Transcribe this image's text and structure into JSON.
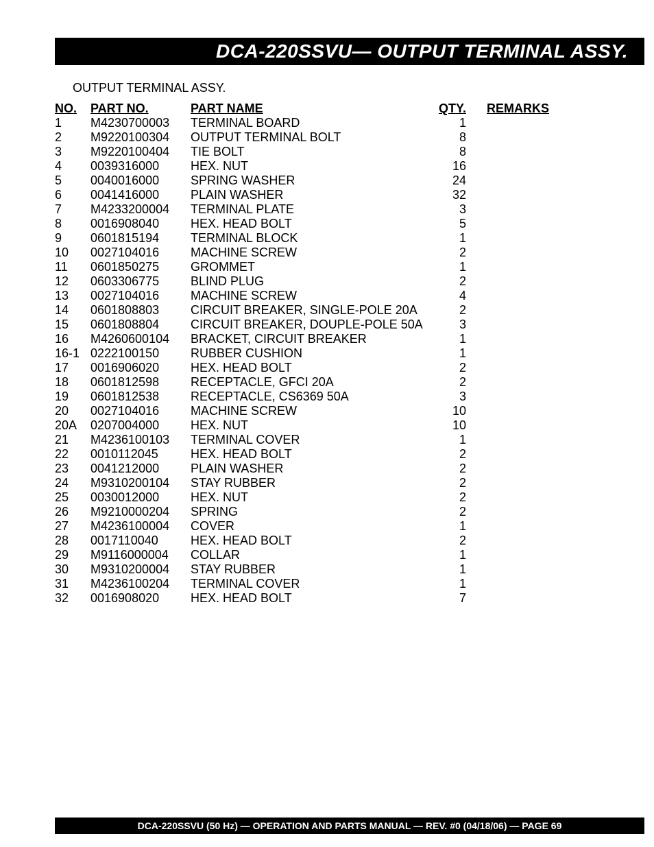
{
  "header": {
    "title": "DCA-220SSVU— OUTPUT TERMINAL ASSY."
  },
  "section_title": "OUTPUT TERMINAL ASSY.",
  "columns": {
    "no": "NO.",
    "part_no": "PART NO.",
    "part_name": "PART NAME",
    "qty": "QTY.",
    "remarks": "REMARKS"
  },
  "rows": [
    {
      "no": "1",
      "part_no": "M4230700003",
      "part_name": "TERMINAL BOARD",
      "qty": "1",
      "remarks": ""
    },
    {
      "no": "2",
      "part_no": "M9220100304",
      "part_name": "OUTPUT TERMINAL BOLT",
      "qty": "8",
      "remarks": ""
    },
    {
      "no": "3",
      "part_no": "M9220100404",
      "part_name": "TIE BOLT",
      "qty": "8",
      "remarks": ""
    },
    {
      "no": "4",
      "part_no": "0039316000",
      "part_name": "HEX. NUT",
      "qty": "16",
      "remarks": ""
    },
    {
      "no": "5",
      "part_no": "0040016000",
      "part_name": "SPRING WASHER",
      "qty": "24",
      "remarks": ""
    },
    {
      "no": "6",
      "part_no": "0041416000",
      "part_name": "PLAIN WASHER",
      "qty": "32",
      "remarks": ""
    },
    {
      "no": "7",
      "part_no": "M4233200004",
      "part_name": "TERMINAL PLATE",
      "qty": "3",
      "remarks": ""
    },
    {
      "no": "8",
      "part_no": "0016908040",
      "part_name": "HEX. HEAD BOLT",
      "qty": "5",
      "remarks": ""
    },
    {
      "no": "9",
      "part_no": "0601815194",
      "part_name": "TERMINAL BLOCK",
      "qty": "1",
      "remarks": ""
    },
    {
      "no": "10",
      "part_no": "0027104016",
      "part_name": "MACHINE SCREW",
      "qty": "2",
      "remarks": ""
    },
    {
      "no": "11",
      "part_no": "0601850275",
      "part_name": "GROMMET",
      "qty": "1",
      "remarks": ""
    },
    {
      "no": "12",
      "part_no": "0603306775",
      "part_name": "BLIND PLUG",
      "qty": "2",
      "remarks": ""
    },
    {
      "no": "13",
      "part_no": "0027104016",
      "part_name": "MACHINE SCREW",
      "qty": "4",
      "remarks": ""
    },
    {
      "no": "14",
      "part_no": "0601808803",
      "part_name": "CIRCUIT BREAKER, SINGLE-POLE 20A",
      "qty": "2",
      "remarks": ""
    },
    {
      "no": "15",
      "part_no": "0601808804",
      "part_name": "CIRCUIT BREAKER, DOUPLE-POLE 50A",
      "qty": "3",
      "remarks": ""
    },
    {
      "no": "16",
      "part_no": "M4260600104",
      "part_name": "BRACKET, CIRCUIT BREAKER",
      "qty": "1",
      "remarks": ""
    },
    {
      "no": "16-1",
      "part_no": "0222100150",
      "part_name": "RUBBER CUSHION",
      "qty": "1",
      "remarks": ""
    },
    {
      "no": "17",
      "part_no": "0016906020",
      "part_name": "HEX. HEAD BOLT",
      "qty": "2",
      "remarks": ""
    },
    {
      "no": "18",
      "part_no": "0601812598",
      "part_name": "RECEPTACLE, GFCI 20A",
      "qty": "2",
      "remarks": ""
    },
    {
      "no": "19",
      "part_no": "0601812538",
      "part_name": "RECEPTACLE, CS6369 50A",
      "qty": "3",
      "remarks": ""
    },
    {
      "no": "20",
      "part_no": "0027104016",
      "part_name": "MACHINE SCREW",
      "qty": "10",
      "remarks": ""
    },
    {
      "no": "20A",
      "part_no": "0207004000",
      "part_name": "HEX. NUT",
      "qty": "10",
      "remarks": ""
    },
    {
      "no": "21",
      "part_no": "M4236100103",
      "part_name": "TERMINAL COVER",
      "qty": "1",
      "remarks": ""
    },
    {
      "no": "22",
      "part_no": "0010112045",
      "part_name": "HEX. HEAD BOLT",
      "qty": "2",
      "remarks": ""
    },
    {
      "no": "23",
      "part_no": "0041212000",
      "part_name": "PLAIN WASHER",
      "qty": "2",
      "remarks": ""
    },
    {
      "no": "24",
      "part_no": "M9310200104",
      "part_name": "STAY RUBBER",
      "qty": "2",
      "remarks": ""
    },
    {
      "no": "25",
      "part_no": "0030012000",
      "part_name": "HEX. NUT",
      "qty": "2",
      "remarks": ""
    },
    {
      "no": "26",
      "part_no": "M9210000204",
      "part_name": "SPRING",
      "qty": "2",
      "remarks": ""
    },
    {
      "no": "27",
      "part_no": "M4236100004",
      "part_name": "COVER",
      "qty": "1",
      "remarks": ""
    },
    {
      "no": "28",
      "part_no": "0017110040",
      "part_name": "HEX. HEAD BOLT",
      "qty": "2",
      "remarks": ""
    },
    {
      "no": "29",
      "part_no": "M9116000004",
      "part_name": "COLLAR",
      "qty": "1",
      "remarks": ""
    },
    {
      "no": "30",
      "part_no": "M9310200004",
      "part_name": "STAY RUBBER",
      "qty": "1",
      "remarks": ""
    },
    {
      "no": "31",
      "part_no": "M4236100204",
      "part_name": "TERMINAL COVER",
      "qty": "1",
      "remarks": ""
    },
    {
      "no": "32",
      "part_no": "0016908020",
      "part_name": "HEX. HEAD BOLT",
      "qty": "7",
      "remarks": ""
    }
  ],
  "footer": "DCA-220SSVU (50 Hz) — OPERATION AND PARTS MANUAL — REV. #0  (04/18/06) — PAGE 69"
}
